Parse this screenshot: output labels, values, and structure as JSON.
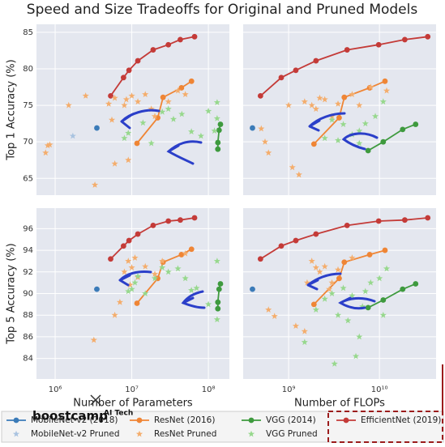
{
  "title": "Speed and Size Tradeoffs for Original and Pruned Models",
  "watermark": {
    "brand": "boostcamp",
    "sub": "AI Tech"
  },
  "chart_data": [
    {
      "type": "line",
      "ylabel": "Top 1 Accuracy (%)",
      "xscale": "log",
      "grid": true,
      "xlim": [
        570000,
        188000000
      ],
      "xticks": [
        {
          "value": 1000000,
          "label": "10⁶"
        },
        {
          "value": 10000000,
          "label": "10⁷"
        },
        {
          "value": 100000000,
          "label": "10⁸"
        }
      ],
      "ylim": [
        62.7,
        86.1
      ],
      "yticks": [
        65,
        70,
        75,
        80,
        85
      ],
      "series": [
        {
          "name": "MobileNet-v2 (2018)",
          "color": "#3b7bb8",
          "marker": "circle",
          "line": true,
          "x": [
            3500000
          ],
          "values": [
            71.9
          ]
        },
        {
          "name": "ResNet (2016)",
          "color": "#ef8535",
          "marker": "circle",
          "line": true,
          "x": [
            11700000,
            21800000,
            25600000,
            44500000,
            60200000
          ],
          "values": [
            69.8,
            73.3,
            76.1,
            77.4,
            78.3
          ]
        },
        {
          "name": "VGG (2014)",
          "color": "#3e9a3e",
          "marker": "circle",
          "line": true,
          "x": [
            132900000,
            133000000,
            138000000,
            143700000
          ],
          "values": [
            69.0,
            69.9,
            71.6,
            72.4
          ]
        },
        {
          "name": "EfficientNet (2019)",
          "color": "#c43b38",
          "marker": "circle",
          "line": true,
          "x": [
            5300000,
            7800000,
            9200000,
            12000000,
            19000000,
            30000000,
            43000000,
            66000000
          ],
          "values": [
            76.3,
            78.8,
            79.8,
            81.1,
            82.6,
            83.3,
            84.0,
            84.4
          ]
        },
        {
          "name": "MobileNet-v2 Pruned",
          "color": "#a9c3e0",
          "marker": "star",
          "line": false,
          "x": [
            1700000
          ],
          "values": [
            70.8
          ]
        },
        {
          "name": "ResNet Pruned",
          "color": "#f4ad6c",
          "marker": "star",
          "line": false,
          "x": [
            800000,
            850000,
            750000,
            1500000,
            2500000,
            3300000,
            5000000,
            5500000,
            6000000,
            8000000,
            9000000,
            8500000,
            10000000,
            12000000,
            15000000,
            18000000,
            20000000,
            30000000,
            40000000,
            50000000,
            6000000
          ],
          "values": [
            69.5,
            69.6,
            68.5,
            75,
            76.3,
            64.1,
            75.2,
            73,
            76,
            75,
            67.5,
            75.8,
            76.3,
            75.5,
            76.5,
            74.5,
            73.5,
            75.5,
            77,
            76.5,
            67
          ]
        },
        {
          "name": "VGG Pruned",
          "color": "#97d88d",
          "marker": "star",
          "line": false,
          "x": [
            8000000,
            9000000,
            14000000,
            18000000,
            25000000,
            30000000,
            35000000,
            45000000,
            60000000,
            80000000,
            100000000,
            130000000,
            130000000,
            120000000
          ],
          "values": [
            70.5,
            71.2,
            72.6,
            69.8,
            74.1,
            74.5,
            73.1,
            73.8,
            71.4,
            70.8,
            74.2,
            75.4,
            73.2,
            71.5
          ]
        }
      ]
    },
    {
      "type": "line",
      "xscale": "log",
      "grid": true,
      "xlim": [
        316000000,
        42000000000
      ],
      "xticks": [
        {
          "value": 1000000000,
          "label": "10⁹"
        },
        {
          "value": 10000000000,
          "label": "10¹⁰"
        }
      ],
      "ylim": [
        62.7,
        86.1
      ],
      "yticks": [
        65,
        70,
        75,
        80,
        85
      ],
      "series": [
        {
          "name": "MobileNet-v2 (2018)",
          "color": "#3b7bb8",
          "marker": "circle",
          "line": true,
          "x": [
            400000000
          ],
          "values": [
            71.9
          ]
        },
        {
          "name": "ResNet (2016)",
          "color": "#ef8535",
          "marker": "circle",
          "line": true,
          "x": [
            1900000000,
            3600000000,
            4100000000,
            7800000000,
            11500000000
          ],
          "values": [
            69.7,
            73.3,
            76.1,
            77.4,
            78.3
          ]
        },
        {
          "name": "VGG (2014)",
          "color": "#3e9a3e",
          "marker": "circle",
          "line": true,
          "x": [
            7500000000,
            11000000000,
            18000000000,
            25000000000
          ],
          "values": [
            68.8,
            70.0,
            71.7,
            72.4
          ]
        },
        {
          "name": "EfficientNet (2019)",
          "color": "#c43b38",
          "marker": "circle",
          "line": true,
          "x": [
            490000000,
            830000000,
            1200000000,
            2000000000,
            4400000000,
            9800000000,
            19000000000,
            34000000000
          ],
          "values": [
            76.3,
            78.8,
            79.8,
            81.1,
            82.6,
            83.3,
            84.0,
            84.4
          ]
        },
        {
          "name": "ResNet Pruned",
          "color": "#f4ad6c",
          "marker": "star",
          "line": false,
          "x": [
            500000000,
            550000000,
            600000000,
            1000000000,
            1100000000,
            1300000000,
            1500000000,
            1800000000,
            2000000000,
            2200000000,
            2500000000,
            3000000000,
            3500000000,
            5000000000,
            6000000000,
            8000000000,
            12000000000
          ],
          "values": [
            71.8,
            70,
            68.5,
            75,
            66.5,
            65.5,
            75.5,
            75,
            74.5,
            76,
            75.8,
            73.5,
            75.2,
            76.5,
            75,
            77.5,
            77
          ]
        },
        {
          "name": "VGG Pruned",
          "color": "#97d88d",
          "marker": "star",
          "line": false,
          "x": [
            2500000000,
            3000000000,
            4000000000,
            5000000000,
            6000000000,
            7000000000,
            9000000000,
            11000000000,
            6000000000,
            3500000000
          ],
          "values": [
            70.5,
            73,
            72.4,
            71,
            71.5,
            72.5,
            73.5,
            75.5,
            69.8,
            70.2
          ]
        }
      ]
    },
    {
      "type": "line",
      "xlabel": "Number of Parameters",
      "ylabel": "Top 5 Accuracy (%)",
      "xscale": "log",
      "grid": true,
      "xlim": [
        570000,
        188000000
      ],
      "xticks": [
        {
          "value": 1000000,
          "label": "10⁶"
        },
        {
          "value": 10000000,
          "label": "10⁷"
        },
        {
          "value": 100000000,
          "label": "10⁸"
        }
      ],
      "ylim": [
        82.1,
        97.9
      ],
      "yticks": [
        84,
        86,
        88,
        90,
        92,
        94,
        96
      ],
      "series": [
        {
          "name": "MobileNet-v2 (2018)",
          "color": "#3b7bb8",
          "marker": "circle",
          "line": true,
          "x": [
            3500000
          ],
          "values": [
            90.4
          ]
        },
        {
          "name": "ResNet (2016)",
          "color": "#ef8535",
          "marker": "circle",
          "line": true,
          "x": [
            11700000,
            21800000,
            25600000,
            44500000,
            60200000
          ],
          "values": [
            89.1,
            91.4,
            92.9,
            93.6,
            94.1
          ]
        },
        {
          "name": "VGG (2014)",
          "color": "#3e9a3e",
          "marker": "circle",
          "line": true,
          "x": [
            132900000,
            133000000,
            138000000,
            143700000
          ],
          "values": [
            88.6,
            89.2,
            90.4,
            90.9
          ]
        },
        {
          "name": "EfficientNet (2019)",
          "color": "#c43b38",
          "marker": "circle",
          "line": true,
          "x": [
            5300000,
            7800000,
            9200000,
            12000000,
            19000000,
            30000000,
            43000000,
            66000000
          ],
          "values": [
            93.2,
            94.4,
            94.9,
            95.5,
            96.3,
            96.7,
            96.8,
            97.0
          ]
        },
        {
          "name": "ResNet Pruned",
          "color": "#f4ad6c",
          "marker": "star",
          "line": false,
          "x": [
            3200000,
            6000000,
            7000000,
            8000000,
            9000000,
            10000000,
            12000000,
            15000000,
            20000000,
            25000000,
            9500000,
            11000000,
            50000000
          ],
          "values": [
            85.7,
            88,
            89.2,
            92,
            93,
            92.4,
            91.5,
            92.5,
            91.8,
            93,
            90.8,
            93.3,
            93.7
          ]
        },
        {
          "name": "VGG Pruned",
          "color": "#97d88d",
          "marker": "star",
          "line": false,
          "x": [
            9000000,
            10000000,
            12000000,
            15000000,
            20000000,
            25000000,
            30000000,
            40000000,
            50000000,
            60000000,
            130000000,
            130000000,
            100000000,
            70000000,
            11000000
          ],
          "values": [
            90.2,
            90.4,
            91.6,
            90,
            91.4,
            92.4,
            92,
            92.3,
            91.4,
            90.3,
            93,
            87.6,
            89,
            90.5,
            91
          ]
        }
      ]
    },
    {
      "type": "line",
      "xlabel": "Number of FLOPs",
      "xscale": "log",
      "grid": true,
      "xlim": [
        316000000,
        42000000000
      ],
      "xticks": [
        {
          "value": 1000000000,
          "label": "10⁹"
        },
        {
          "value": 10000000000,
          "label": "10¹⁰"
        }
      ],
      "ylim": [
        82.1,
        97.9
      ],
      "yticks": [
        84,
        86,
        88,
        90,
        92,
        94,
        96
      ],
      "series": [
        {
          "name": "MobileNet-v2 (2018)",
          "color": "#3b7bb8",
          "marker": "circle",
          "line": true,
          "x": [
            400000000
          ],
          "values": [
            90.4
          ]
        },
        {
          "name": "ResNet (2016)",
          "color": "#ef8535",
          "marker": "circle",
          "line": true,
          "x": [
            1900000000,
            3600000000,
            4100000000,
            7800000000,
            11500000000
          ],
          "values": [
            89.0,
            91.4,
            92.9,
            93.6,
            94.0
          ]
        },
        {
          "name": "VGG (2014)",
          "color": "#3e9a3e",
          "marker": "circle",
          "line": true,
          "x": [
            7500000000,
            11000000000,
            18000000000,
            25000000000
          ],
          "values": [
            88.7,
            89.4,
            90.4,
            90.9
          ]
        },
        {
          "name": "EfficientNet (2019)",
          "color": "#c43b38",
          "marker": "circle",
          "line": true,
          "x": [
            490000000,
            830000000,
            1200000000,
            2000000000,
            4400000000,
            9800000000,
            19000000000,
            34000000000
          ],
          "values": [
            93.2,
            94.4,
            94.9,
            95.5,
            96.3,
            96.7,
            96.8,
            97.0
          ]
        },
        {
          "name": "ResNet Pruned",
          "color": "#f4ad6c",
          "marker": "star",
          "line": false,
          "x": [
            600000000,
            700000000,
            1200000000,
            1500000000,
            1600000000,
            2000000000,
            2500000000,
            3000000000,
            3500000000,
            1800000000,
            5000000000,
            2200000000,
            2800000000
          ],
          "values": [
            88.5,
            87.9,
            87,
            86.5,
            91,
            92.4,
            92.5,
            91,
            92.2,
            93,
            93.3,
            92,
            90.4
          ]
        },
        {
          "name": "VGG Pruned",
          "color": "#97d88d",
          "marker": "star",
          "line": false,
          "x": [
            1500000000,
            2000000000,
            2500000000,
            3000000000,
            3500000000,
            4000000000,
            4500000000,
            5000000000,
            6000000000,
            7000000000,
            8000000000,
            5500000000,
            3200000000,
            6500000000,
            10000000000,
            12000000000,
            11000000000
          ],
          "values": [
            85.5,
            88.5,
            89.5,
            90,
            88,
            90.5,
            87.5,
            89.8,
            86,
            90.2,
            91,
            84.2,
            83.5,
            88.8,
            91.4,
            92.3,
            88
          ]
        }
      ]
    }
  ]
}
